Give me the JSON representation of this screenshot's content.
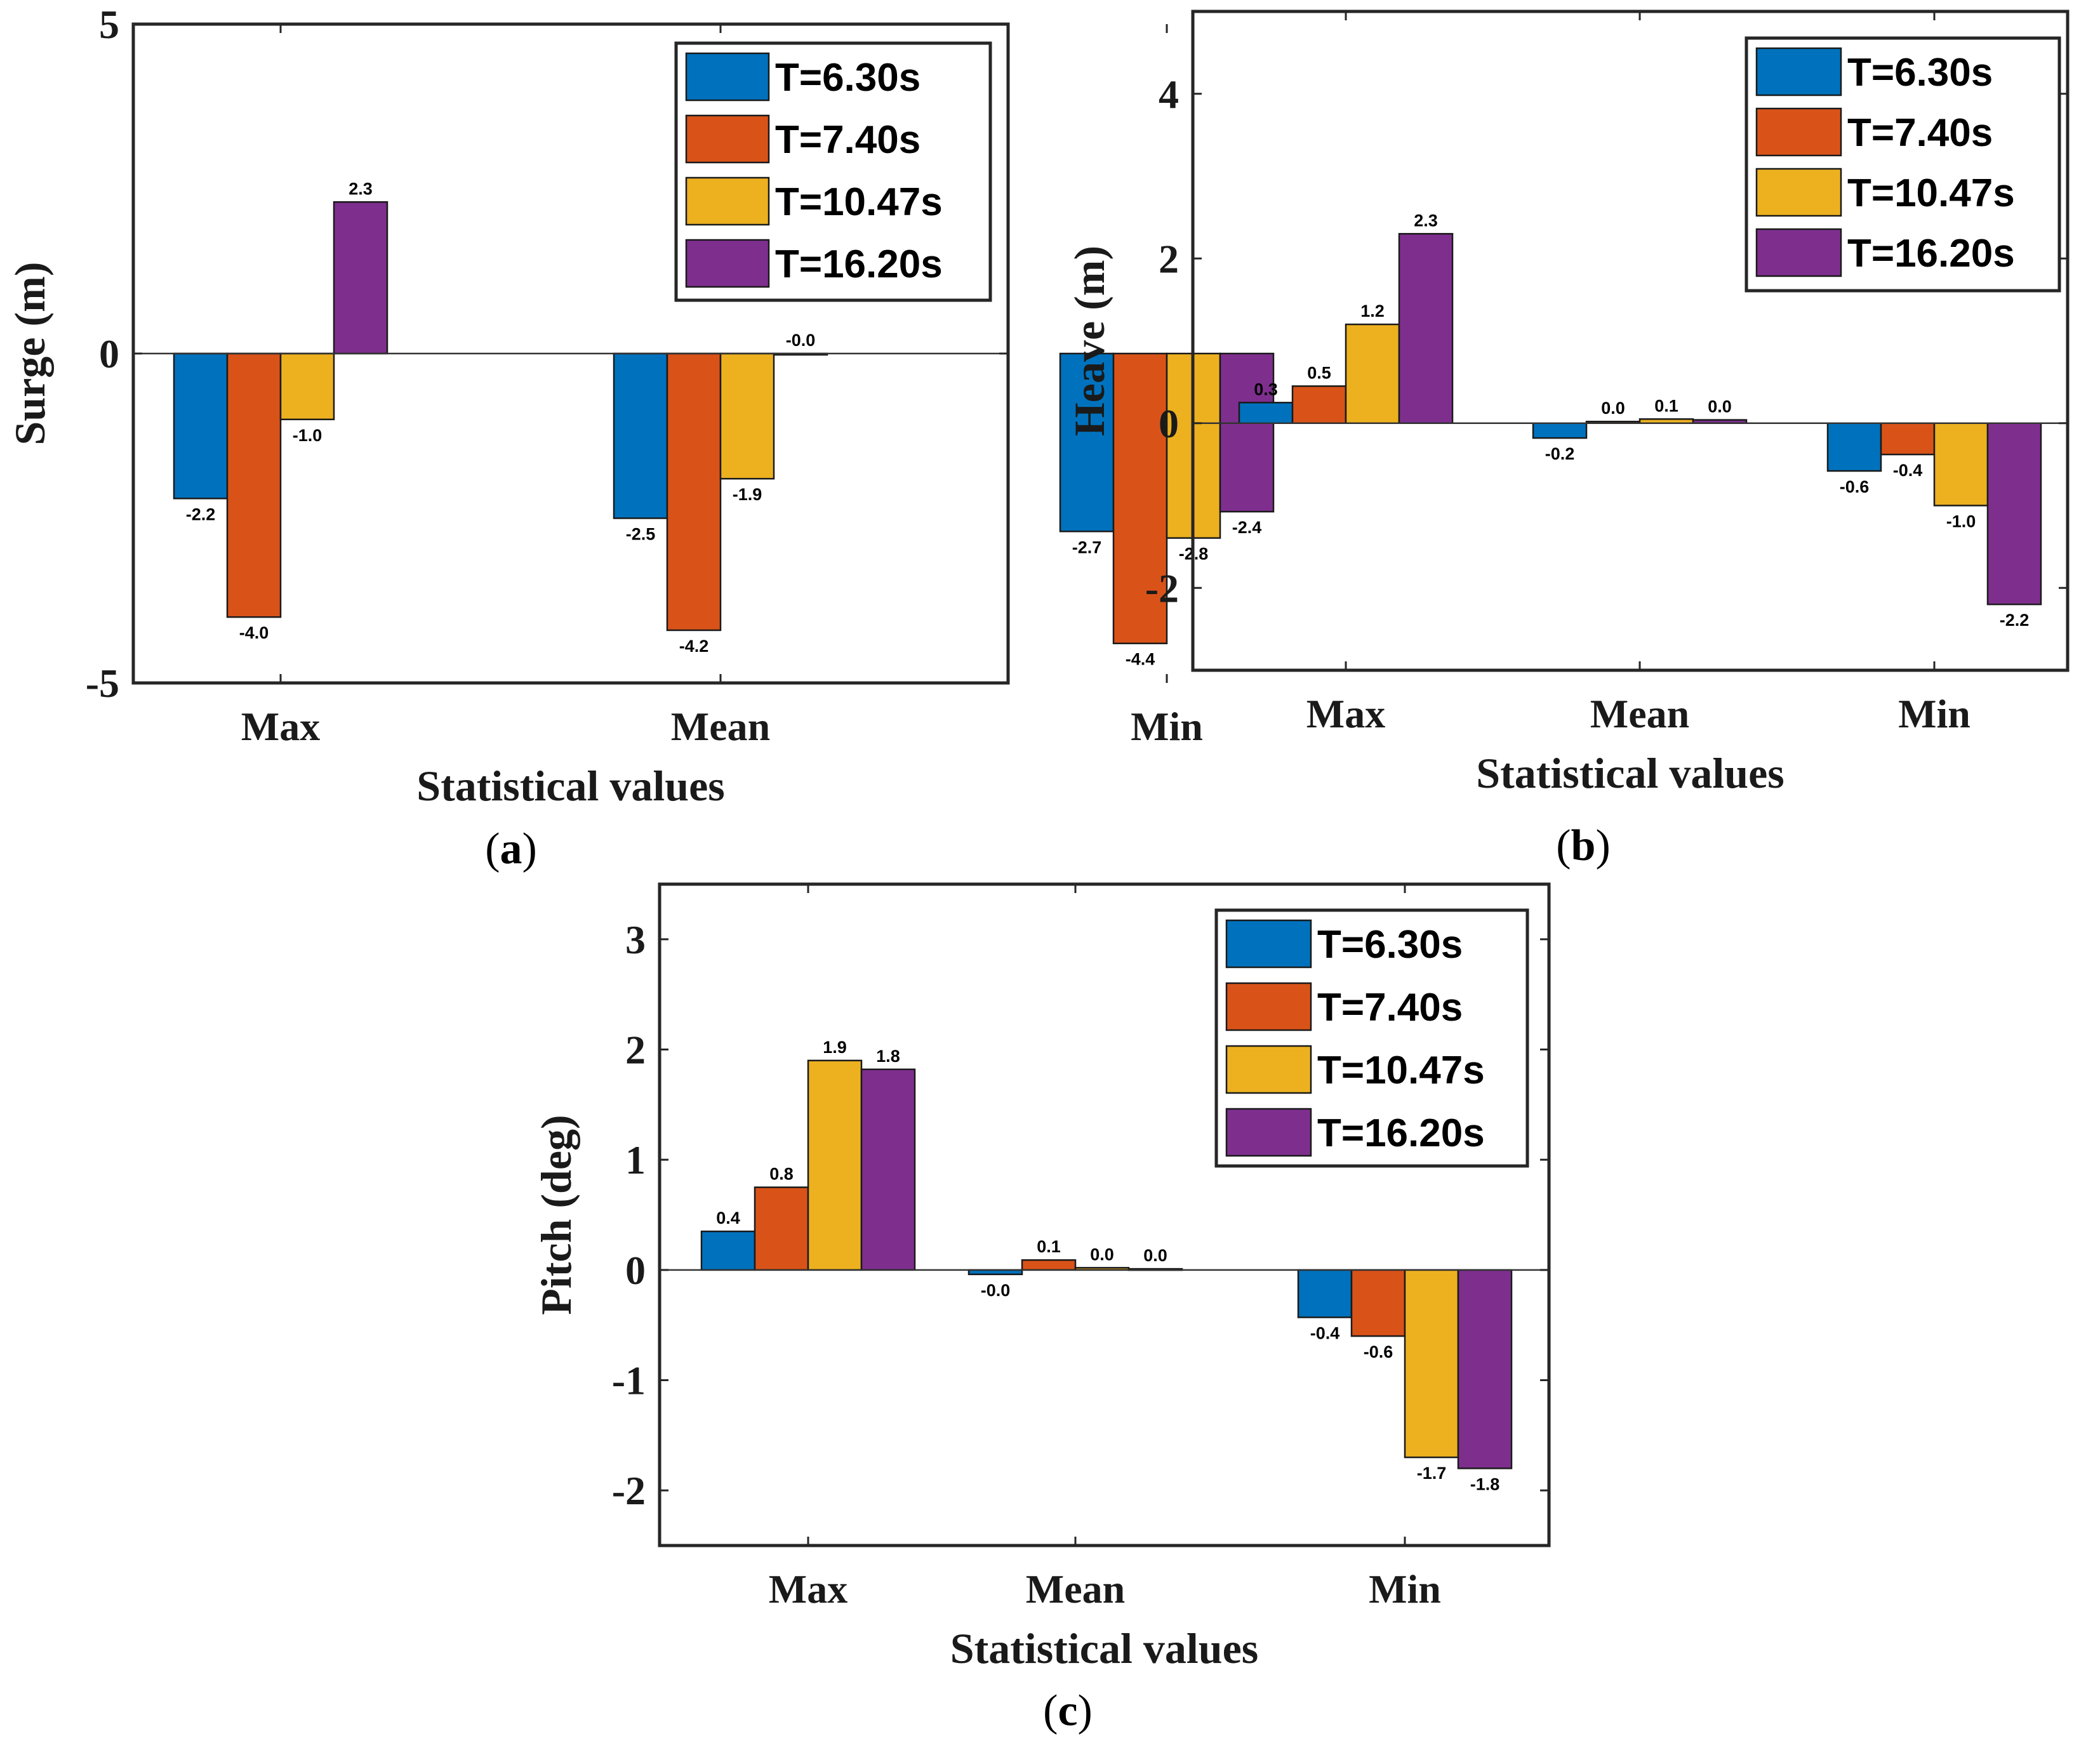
{
  "colors": {
    "T=6.30s": "#0072BD",
    "T=7.40s": "#D95319",
    "T=10.47s": "#EDB120",
    "T=16.20s": "#7E2F8E"
  },
  "chart_data": [
    {
      "type": "bar",
      "caption": "(a)",
      "xlabel": "Statistical values",
      "ylabel": "Surge (m)",
      "categories": [
        "Max",
        "Mean",
        "Min"
      ],
      "ylim": [
        -5,
        5
      ],
      "yticks": [
        "-5",
        "0",
        "5"
      ],
      "ytick_values": [
        -5,
        0,
        5
      ],
      "legend_position": "top-right",
      "series": [
        {
          "name": "T=6.30s",
          "values": [
            -2.2,
            -2.5,
            -2.7
          ],
          "labels": [
            "-2.2",
            "-2.5",
            "-2.7"
          ]
        },
        {
          "name": "T=7.40s",
          "values": [
            -4.0,
            -4.2,
            -4.4
          ],
          "labels": [
            "-4.0",
            "-4.2",
            "-4.4"
          ]
        },
        {
          "name": "T=10.47s",
          "values": [
            -1.0,
            -1.9,
            -2.8
          ],
          "labels": [
            "-1.0",
            "-1.9",
            "-2.8"
          ]
        },
        {
          "name": "T=16.20s",
          "values": [
            2.3,
            -0.0,
            -2.4
          ],
          "labels": [
            "2.3",
            "-0.0",
            "-2.4"
          ]
        }
      ]
    },
    {
      "type": "bar",
      "caption": "(b)",
      "xlabel": "Statistical values",
      "ylabel": "Heave (m)",
      "categories": [
        "Max",
        "Mean",
        "Min"
      ],
      "ylim": [
        -3,
        5
      ],
      "yticks": [
        "-2",
        "0",
        "2",
        "4"
      ],
      "ytick_values": [
        -2,
        0,
        2,
        4
      ],
      "legend_position": "top-right",
      "series": [
        {
          "name": "T=6.30s",
          "values": [
            0.25,
            -0.18,
            -0.58
          ],
          "labels": [
            "0.3",
            "-0.2",
            "-0.6"
          ]
        },
        {
          "name": "T=7.40s",
          "values": [
            0.45,
            0.02,
            -0.38
          ],
          "labels": [
            "0.5",
            "0.0",
            "-0.4"
          ]
        },
        {
          "name": "T=10.47s",
          "values": [
            1.2,
            0.05,
            -1.0
          ],
          "labels": [
            "1.2",
            "0.1",
            "-1.0"
          ]
        },
        {
          "name": "T=16.20s",
          "values": [
            2.3,
            0.04,
            -2.2
          ],
          "labels": [
            "2.3",
            "0.0",
            "-2.2"
          ]
        }
      ]
    },
    {
      "type": "bar",
      "caption": "(c)",
      "xlabel": "Statistical values",
      "ylabel": "Pitch (deg)",
      "categories": [
        "Max",
        "Mean",
        "Min"
      ],
      "ylim": [
        -2.5,
        3.5
      ],
      "yticks": [
        "-2",
        "-1",
        "0",
        "1",
        "2",
        "3"
      ],
      "ytick_values": [
        -2,
        -1,
        0,
        1,
        2,
        3
      ],
      "legend_position": "top-right",
      "series": [
        {
          "name": "T=6.30s",
          "values": [
            0.35,
            -0.04,
            -0.43
          ],
          "labels": [
            "0.4",
            "-0.0",
            "-0.4"
          ]
        },
        {
          "name": "T=7.40s",
          "values": [
            0.75,
            0.09,
            -0.6
          ],
          "labels": [
            "0.8",
            "0.1",
            "-0.6"
          ]
        },
        {
          "name": "T=10.47s",
          "values": [
            1.9,
            0.02,
            -1.7
          ],
          "labels": [
            "1.9",
            "0.0",
            "-1.7"
          ]
        },
        {
          "name": "T=16.20s",
          "values": [
            1.82,
            0.01,
            -1.8
          ],
          "labels": [
            "1.8",
            "0.0",
            "-1.8"
          ]
        }
      ]
    }
  ]
}
